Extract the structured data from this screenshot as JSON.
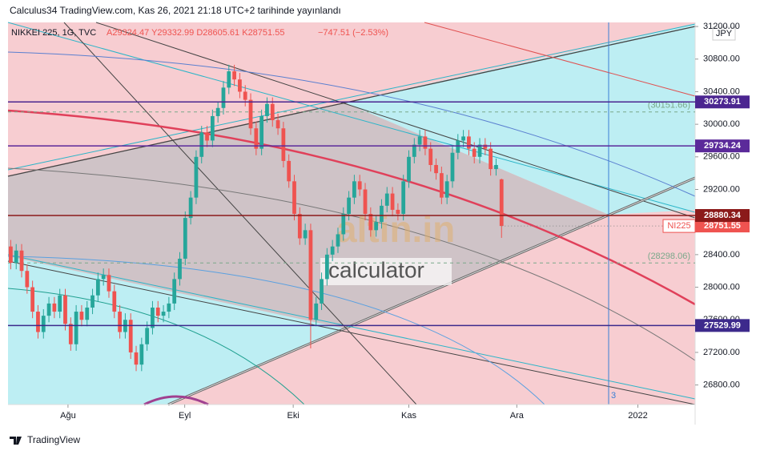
{
  "header": {
    "publisher": "Calculus34 TradingView.com, Kas 26, 2021 21:18 UTC+2 tarihinde yayınlandı",
    "symbol": "NIKKEI 225, 1G, TVC",
    "ohlc": "A29324.47 Y29332.99 D28605.61 K28751.55",
    "change": "−747.51 (−2.53%)"
  },
  "currency": "JPY",
  "watermark": {
    "brand": "altin.in",
    "tool": "calculator"
  },
  "marker": "3",
  "footer": "TradingView",
  "chart_data": {
    "type": "candlestick",
    "xlim": [
      -0.5,
      125.5
    ],
    "xticks": [
      {
        "value": 10.5,
        "label": "Ağu"
      },
      {
        "value": 31.9,
        "label": "Eyl"
      },
      {
        "value": 51.8,
        "label": "Eki"
      },
      {
        "value": 73,
        "label": "Kas"
      },
      {
        "value": 92.8,
        "label": "Ara"
      },
      {
        "value": 115,
        "label": "2022"
      }
    ],
    "ylim": [
      26560,
      31250
    ],
    "yticks": [
      {
        "value": 31200,
        "label": "31200.00"
      },
      {
        "value": 30800,
        "label": "30800.00"
      },
      {
        "value": 30400,
        "label": "30400.00"
      },
      {
        "value": 30000,
        "label": "30000.00"
      },
      {
        "value": 29600,
        "label": "29600.00"
      },
      {
        "value": 29200,
        "label": "29200.00"
      },
      {
        "value": 28800,
        "label": "28800.00"
      },
      {
        "value": 28400,
        "label": "28400.00"
      },
      {
        "value": 28000,
        "label": "28000.00"
      },
      {
        "value": 27600,
        "label": "27600.00"
      },
      {
        "value": 27200,
        "label": "27200.00"
      },
      {
        "value": 26800,
        "label": "26800.00"
      }
    ],
    "up_color": "#26a69a",
    "down_color": "#ef5350",
    "open": [
      28500,
      28300,
      28450,
      28200,
      28000,
      27700,
      27450,
      27650,
      27800,
      27700,
      27900,
      27550,
      27300,
      27700,
      27600,
      27750,
      27900,
      28100,
      28150,
      27950,
      27700,
      27450,
      27600,
      27200,
      27050,
      27300,
      27500,
      27750,
      27650,
      27700,
      27800,
      28100,
      28350,
      28850,
      29100,
      29600,
      29900,
      29800,
      30100,
      30200,
      30450,
      30650,
      30550,
      30400,
      30300,
      29950,
      29700,
      30100,
      30250,
      30050,
      29950,
      29550,
      29300,
      28900,
      28600,
      28700,
      27600,
      27800,
      28100,
      28400,
      28500,
      28650,
      28900,
      29100,
      29300,
      29200,
      28900,
      28700,
      28800,
      29000,
      29150,
      28950,
      28900,
      29300,
      29600,
      29750,
      29850,
      29700,
      29500,
      29400,
      29100,
      29300,
      29650,
      29800,
      29850,
      29700,
      29600,
      29750,
      29700,
      29450,
      29324.47
    ],
    "high": [
      28580,
      28530,
      28530,
      28280,
      28080,
      27780,
      27730,
      27880,
      27880,
      27980,
      27980,
      27630,
      27780,
      27780,
      27830,
      27980,
      28180,
      28230,
      28230,
      28030,
      27780,
      27680,
      27680,
      27280,
      27380,
      27580,
      27830,
      27830,
      27780,
      27880,
      28180,
      28430,
      28930,
      29180,
      29680,
      29980,
      29980,
      30180,
      30280,
      30530,
      30730,
      30730,
      30630,
      30480,
      30380,
      30030,
      30180,
      30330,
      30330,
      30130,
      30030,
      29630,
      29380,
      28980,
      28780,
      28780,
      27880,
      28180,
      28480,
      28580,
      28730,
      28980,
      29180,
      29380,
      29380,
      29280,
      28980,
      28880,
      29080,
      29230,
      29230,
      29030,
      29380,
      29680,
      29830,
      29930,
      29930,
      29780,
      29580,
      29480,
      29380,
      29730,
      29880,
      29930,
      29930,
      29780,
      29830,
      29830,
      29780,
      29580,
      29332.99
    ],
    "low": [
      28220,
      28220,
      28120,
      27920,
      27620,
      27370,
      27370,
      27570,
      27620,
      27620,
      27470,
      27220,
      27220,
      27520,
      27520,
      27670,
      27820,
      28020,
      27870,
      27620,
      27370,
      27370,
      27120,
      26970,
      26970,
      27220,
      27420,
      27570,
      27570,
      27620,
      27720,
      28020,
      28270,
      28770,
      29020,
      29520,
      29720,
      29720,
      30020,
      30120,
      30370,
      30470,
      30320,
      30220,
      29870,
      29620,
      29620,
      30020,
      29970,
      29870,
      29470,
      29220,
      28820,
      28520,
      28520,
      27250,
      27520,
      27720,
      28020,
      28320,
      28420,
      28570,
      28820,
      29020,
      29120,
      28820,
      28620,
      28620,
      28720,
      28920,
      28870,
      28820,
      28820,
      29220,
      29520,
      29670,
      29620,
      29420,
      29320,
      29020,
      29020,
      29220,
      29570,
      29720,
      29620,
      29520,
      29520,
      29620,
      29370,
      29370,
      28605.61
    ],
    "close": [
      28300,
      28450,
      28200,
      28000,
      27700,
      27450,
      27650,
      27800,
      27700,
      27900,
      27550,
      27300,
      27700,
      27600,
      27750,
      27900,
      28100,
      28150,
      27950,
      27700,
      27450,
      27600,
      27200,
      27050,
      27300,
      27500,
      27750,
      27650,
      27700,
      27800,
      28100,
      28350,
      28850,
      29100,
      29600,
      29900,
      29800,
      30100,
      30200,
      30450,
      30650,
      30550,
      30400,
      30300,
      29950,
      29700,
      30100,
      30250,
      30050,
      29950,
      29550,
      29300,
      28900,
      28600,
      28700,
      27600,
      27800,
      28100,
      28400,
      28500,
      28650,
      28900,
      29100,
      29300,
      29200,
      28900,
      28700,
      28800,
      29000,
      29150,
      28950,
      28900,
      29300,
      29600,
      29750,
      29850,
      29700,
      29500,
      29400,
      29100,
      29300,
      29650,
      29800,
      29850,
      29700,
      29600,
      29750,
      29700,
      29450,
      29500,
      28751.55
    ],
    "levels": [
      {
        "value": 30273.91,
        "color": "#4b2590"
      },
      {
        "value": 29734.24,
        "color": "#5b2a9a"
      },
      {
        "value": 28880.34,
        "color": "#8b1a1a"
      },
      {
        "value": 27529.99,
        "color": "#3d2a8c"
      }
    ],
    "dashed_levels": {
      "values": [
        30151.66,
        28298.06
      ],
      "value_labels": [
        "(30151.66)",
        "(28298.06)"
      ],
      "color": "#7aa88a"
    },
    "price_label": {
      "name": "NI225",
      "value": 28751.55,
      "color": "#ef5350"
    }
  }
}
